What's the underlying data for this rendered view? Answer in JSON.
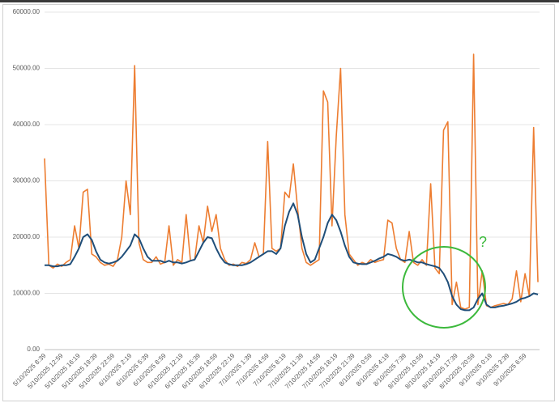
{
  "chart_data": {
    "type": "line",
    "categories": [
      "5/10/2025 8:39",
      null,
      null,
      null,
      "5/10/2025 12:59",
      null,
      null,
      null,
      "5/10/2025 16:19",
      null,
      null,
      null,
      "5/10/2025 19:39",
      null,
      null,
      null,
      "5/10/2025 22:59",
      null,
      null,
      null,
      "6/10/2025 2:19",
      null,
      null,
      null,
      "6/10/2025 5:39",
      null,
      null,
      null,
      "6/10/2025 8:59",
      null,
      null,
      null,
      "6/10/2025 12:19",
      null,
      null,
      null,
      "6/10/2025 15:39",
      null,
      null,
      null,
      "6/10/2025 18:59",
      null,
      null,
      null,
      "6/10/2025 22:19",
      null,
      null,
      null,
      "7/10/2025 1:39",
      null,
      null,
      null,
      "7/10/2025 4:59",
      null,
      null,
      null,
      "7/10/2025 8:19",
      null,
      null,
      null,
      "7/10/2025 11:39",
      null,
      null,
      null,
      "7/10/2025 14:59",
      null,
      null,
      null,
      "7/10/2025 18:19",
      null,
      null,
      null,
      "7/10/2025 21:39",
      null,
      null,
      null,
      "8/10/2025 0:59",
      null,
      null,
      null,
      "8/10/2025 4:19",
      null,
      null,
      null,
      "8/10/2025 7:39",
      null,
      null,
      null,
      "8/10/2025 10:59",
      null,
      null,
      null,
      "8/10/2025 14:19",
      null,
      null,
      null,
      "8/10/2025 17:39",
      null,
      null,
      null,
      "8/10/2025 20:59",
      null,
      null,
      null,
      "9/10/2025 0:19",
      null,
      null,
      null,
      "9/10/2025 3:39",
      null,
      null,
      null,
      "9/10/2025 6:59",
      null,
      null,
      null
    ],
    "series": [
      {
        "color": "#ed7d31",
        "values": [
          34000,
          15000,
          14500,
          15200,
          14800,
          15500,
          16000,
          22000,
          18000,
          28000,
          28500,
          17000,
          16500,
          15500,
          15000,
          15200,
          14800,
          16000,
          20000,
          30000,
          24000,
          50500,
          19000,
          16000,
          15500,
          15500,
          16500,
          15200,
          15500,
          22000,
          15000,
          16000,
          15500,
          24000,
          15800,
          16000,
          22000,
          19000,
          25500,
          21000,
          24000,
          18000,
          16000,
          15000,
          15200,
          14800,
          15500,
          15300,
          16000,
          19000,
          16500,
          17000,
          37000,
          18000,
          17500,
          18000,
          28000,
          27000,
          33000,
          25000,
          18000,
          15500,
          15000,
          15500,
          16000,
          46000,
          44000,
          22000,
          38000,
          50000,
          24000,
          17000,
          16000,
          15000,
          15500,
          15200,
          16000,
          15500,
          15800,
          16000,
          23000,
          22500,
          18000,
          16000,
          15500,
          21000,
          15500,
          15000,
          16000,
          15000,
          29500,
          14500,
          13500,
          39000,
          40500,
          8000,
          12000,
          7500,
          7200,
          7500,
          52500,
          8000,
          14000,
          7800,
          7500,
          7800,
          8000,
          8200,
          8000,
          9000,
          14000,
          8500,
          13500,
          9500,
          39500,
          12000
        ]
      },
      {
        "color": "#1f4e79",
        "values": [
          15000,
          15000,
          14800,
          14800,
          15000,
          15000,
          15200,
          16500,
          18000,
          20000,
          20500,
          19500,
          17500,
          16000,
          15500,
          15300,
          15500,
          15800,
          16500,
          17500,
          18500,
          20500,
          19800,
          18000,
          16500,
          15800,
          15800,
          15800,
          15500,
          15800,
          15500,
          15500,
          15300,
          15500,
          15800,
          16000,
          17500,
          19000,
          20000,
          19800,
          18000,
          16500,
          15500,
          15200,
          15000,
          15000,
          15000,
          15200,
          15500,
          16000,
          16500,
          17000,
          17500,
          17500,
          17000,
          18000,
          22000,
          24500,
          26000,
          24000,
          20000,
          17000,
          15500,
          16000,
          18000,
          20000,
          22500,
          24000,
          23000,
          21000,
          18500,
          16500,
          15500,
          15300,
          15200,
          15200,
          15500,
          15800,
          16200,
          16500,
          17000,
          16800,
          16500,
          16000,
          15800,
          16000,
          15800,
          15500,
          15500,
          15200,
          15000,
          14800,
          14500,
          13500,
          12000,
          9500,
          8000,
          7200,
          7000,
          7000,
          7500,
          9000,
          10000,
          8000,
          7500,
          7500,
          7700,
          7800,
          8000,
          8200,
          8500,
          9000,
          9200,
          9500,
          10000,
          9800
        ]
      }
    ],
    "ylim": [
      0,
      60000
    ],
    "yticks": [
      {
        "value": 0,
        "label": "0.00"
      },
      {
        "value": 10000,
        "label": "10000.00"
      },
      {
        "value": 20000,
        "label": "20000.00"
      },
      {
        "value": 30000,
        "label": "30000.00"
      },
      {
        "value": 40000,
        "label": "40000.00"
      },
      {
        "value": 50000,
        "label": "50000.00"
      },
      {
        "value": 60000,
        "label": "60000.00"
      }
    ],
    "grid": true,
    "annotations": [
      {
        "text": "?",
        "color": "#3cb93c"
      }
    ]
  }
}
